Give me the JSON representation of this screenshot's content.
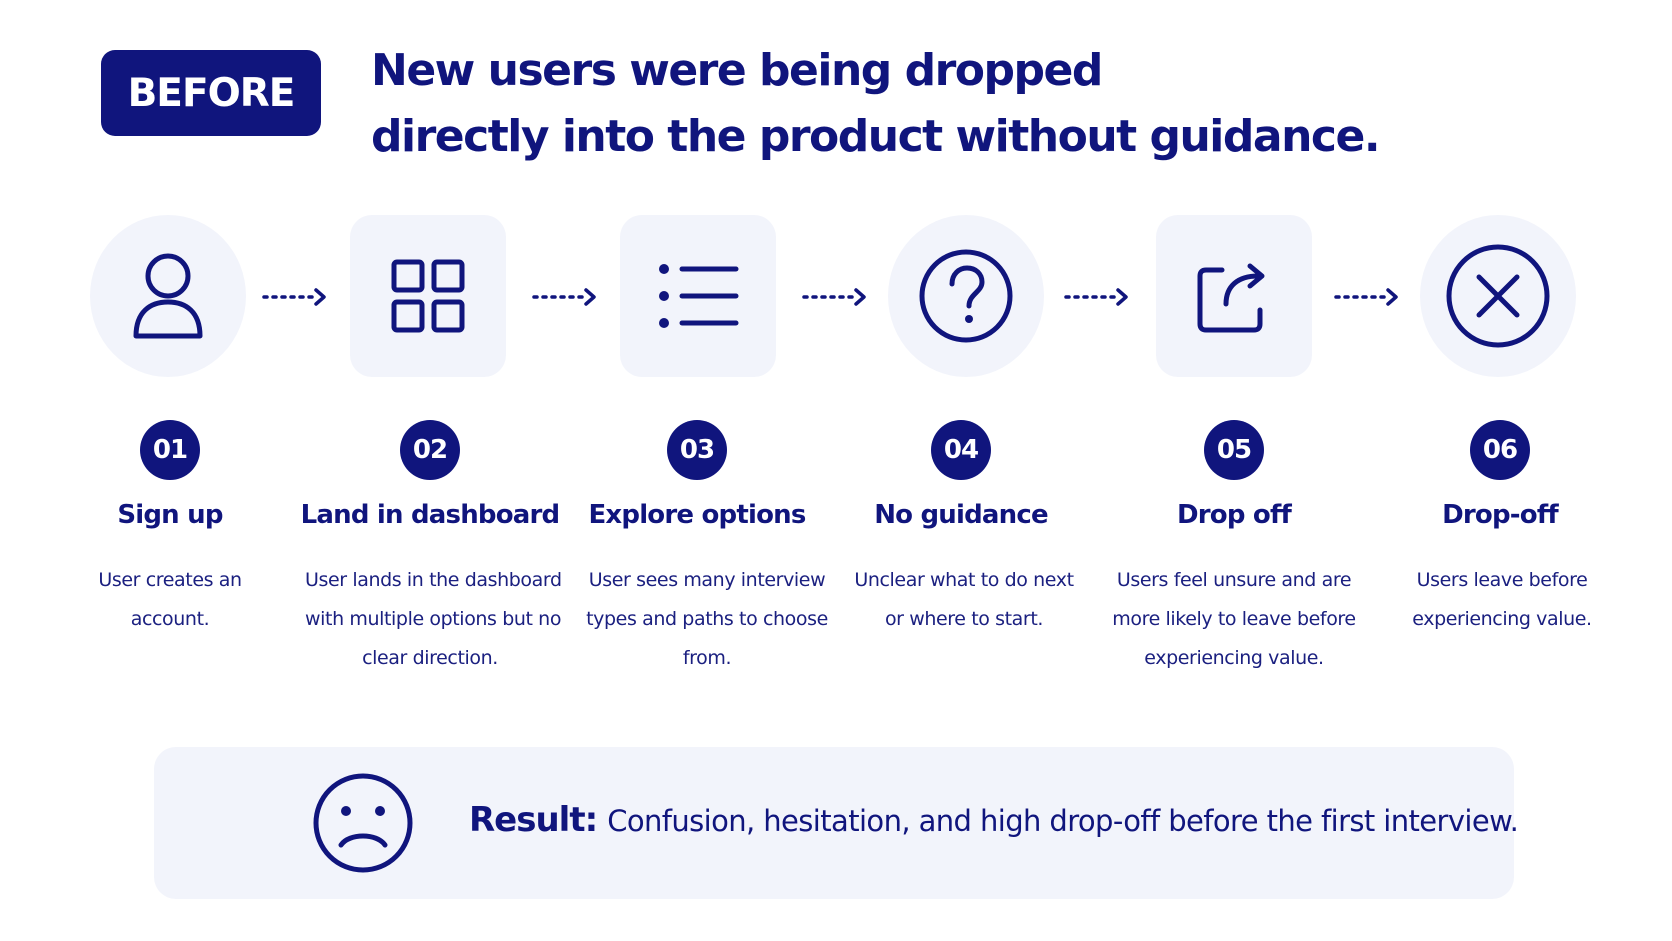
{
  "badge": "BEFORE",
  "headline": {
    "line1": "New users were being dropped",
    "line2": "directly into the product without guidance."
  },
  "steps": [
    {
      "number": "01",
      "icon": "user-icon",
      "title": "Sign up",
      "desc": [
        "User creates an",
        "account."
      ]
    },
    {
      "number": "02",
      "icon": "grid-icon",
      "title": "Land in dashboard",
      "desc": [
        "User lands in the dashboard",
        "with multiple options but no",
        "clear direction."
      ]
    },
    {
      "number": "03",
      "icon": "list-icon",
      "title": "Explore options",
      "desc": [
        "User sees many interview",
        "types and paths to choose",
        "from."
      ]
    },
    {
      "number": "04",
      "icon": "question-icon",
      "title": "No guidance",
      "desc": [
        "Unclear what to do next",
        "or where to start."
      ]
    },
    {
      "number": "05",
      "icon": "exit-icon",
      "title": "Drop off",
      "desc": [
        "Users feel unsure and are",
        "more likely to leave before",
        "experiencing value."
      ]
    },
    {
      "number": "06",
      "icon": "x-circle-icon",
      "title": "Drop-off",
      "desc": [
        "Users leave before",
        "experiencing value."
      ]
    }
  ],
  "result": {
    "label": "Result:",
    "text": "Confusion, hesitation, and high drop-off before the first interview.",
    "icon": "sad-face-icon"
  },
  "colors": {
    "primary": "#10157d",
    "tint": "#f2f4fb",
    "background": "#ffffff"
  }
}
